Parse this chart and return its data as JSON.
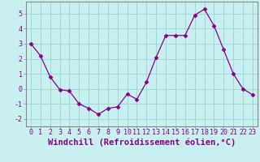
{
  "x": [
    0,
    1,
    2,
    3,
    4,
    5,
    6,
    7,
    8,
    9,
    10,
    11,
    12,
    13,
    14,
    15,
    16,
    17,
    18,
    19,
    20,
    21,
    22,
    23
  ],
  "y": [
    3.0,
    2.2,
    0.8,
    -0.05,
    -0.15,
    -1.0,
    -1.3,
    -1.7,
    -1.3,
    -1.2,
    -0.35,
    -0.7,
    0.45,
    2.1,
    3.55,
    3.55,
    3.55,
    4.9,
    5.3,
    4.2,
    2.6,
    1.0,
    0.0,
    -0.4
  ],
  "line_color": "#880088",
  "marker": "D",
  "marker_size": 2.5,
  "background_color": "#c8f0f0",
  "grid_color": "#a0d8d8",
  "xlabel": "Windchill (Refroidissement éolien,°C)",
  "ylabel": "",
  "ylim": [
    -2.5,
    5.8
  ],
  "xlim": [
    -0.5,
    23.5
  ],
  "yticks": [
    -2,
    -1,
    0,
    1,
    2,
    3,
    4,
    5
  ],
  "xticks": [
    0,
    1,
    2,
    3,
    4,
    5,
    6,
    7,
    8,
    9,
    10,
    11,
    12,
    13,
    14,
    15,
    16,
    17,
    18,
    19,
    20,
    21,
    22,
    23
  ],
  "xlabel_fontsize": 7.5,
  "tick_fontsize": 6.0,
  "spine_color": "#888888",
  "label_color": "#880088"
}
